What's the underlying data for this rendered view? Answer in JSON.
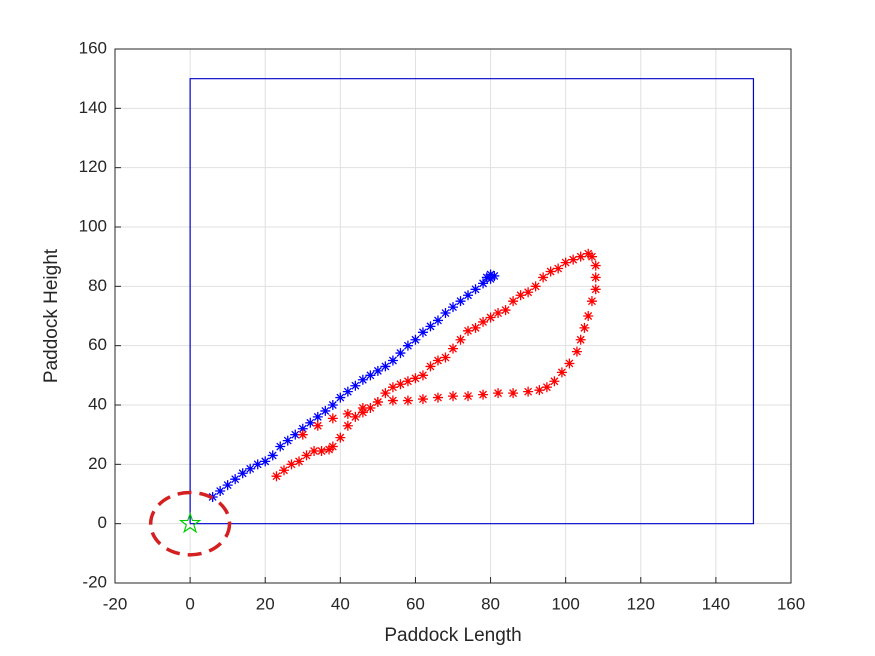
{
  "chart_data": {
    "type": "scatter",
    "xlabel": "Paddock Length",
    "ylabel": "Paddock Height",
    "xlim": [
      -20,
      160
    ],
    "ylim": [
      -20,
      160
    ],
    "xticks": [
      -20,
      0,
      20,
      40,
      60,
      80,
      100,
      120,
      140,
      160
    ],
    "yticks": [
      -20,
      0,
      20,
      40,
      60,
      80,
      100,
      120,
      140,
      160
    ],
    "grid": true,
    "series": [
      {
        "kind": "line",
        "color": "#0000cc",
        "x": [
          0,
          150,
          150,
          0,
          0
        ],
        "values": [
          0,
          0,
          150,
          150,
          0
        ]
      },
      {
        "kind": "marker",
        "marker": "asterisk",
        "color": "#0000ff",
        "x": [
          6,
          8,
          10,
          12,
          14,
          16,
          18,
          20,
          22,
          24,
          26,
          28,
          30,
          32,
          34,
          36,
          38,
          40,
          42,
          44,
          46,
          48,
          50,
          52,
          54,
          56,
          58,
          60,
          62,
          64,
          66,
          68,
          70,
          72,
          74,
          76,
          78,
          79,
          80,
          81,
          80
        ],
        "values": [
          9,
          11,
          13,
          15,
          17,
          18.5,
          20,
          21,
          23,
          26,
          28,
          30,
          32,
          34,
          36,
          38,
          40,
          42.5,
          44.5,
          46.5,
          48.5,
          50,
          51.5,
          53,
          55,
          57.5,
          60,
          62,
          64.5,
          66.5,
          68.5,
          71,
          73,
          75,
          77,
          79,
          81,
          83,
          84,
          83.5,
          82.5
        ]
      },
      {
        "kind": "marker",
        "marker": "asterisk",
        "color": "#ff0000",
        "x": [
          23,
          25,
          27,
          29,
          31,
          33,
          35,
          37,
          38,
          40,
          42,
          44,
          46,
          48,
          50,
          52,
          54,
          56,
          58,
          60,
          62,
          64,
          66,
          68,
          70,
          72,
          74,
          76,
          78,
          80,
          82,
          84,
          86,
          88,
          90,
          92,
          94,
          96,
          98,
          100,
          102,
          104,
          106,
          107,
          108,
          108,
          108,
          107,
          106,
          105,
          104,
          103,
          101,
          99,
          97,
          95,
          93,
          90,
          86,
          82,
          78,
          74,
          70,
          66,
          62,
          58,
          54,
          50,
          46,
          42,
          38,
          34,
          30
        ],
        "values": [
          16,
          18,
          20,
          21,
          23,
          24.5,
          24.5,
          25,
          26,
          29,
          33,
          36,
          37.5,
          39,
          41,
          44,
          46,
          47,
          48,
          49,
          50,
          53,
          55,
          56,
          59,
          62,
          65,
          66,
          68,
          69.5,
          71,
          72,
          75,
          77,
          78,
          80,
          83,
          85,
          86,
          88,
          89,
          90,
          91,
          90,
          87,
          83,
          79,
          75,
          70,
          66,
          62,
          58,
          54,
          51,
          48,
          46,
          45,
          44.5,
          44,
          44,
          43.5,
          43,
          43,
          42.5,
          42,
          41.5,
          41.5,
          41,
          39,
          37,
          35.5,
          33,
          30
        ]
      },
      {
        "kind": "marker",
        "marker": "star",
        "color": "#00cc00",
        "x": [
          0
        ],
        "values": [
          0
        ]
      }
    ],
    "circle": {
      "x": 0,
      "y": 0,
      "radius": 10.5,
      "color": "#d42020"
    }
  }
}
